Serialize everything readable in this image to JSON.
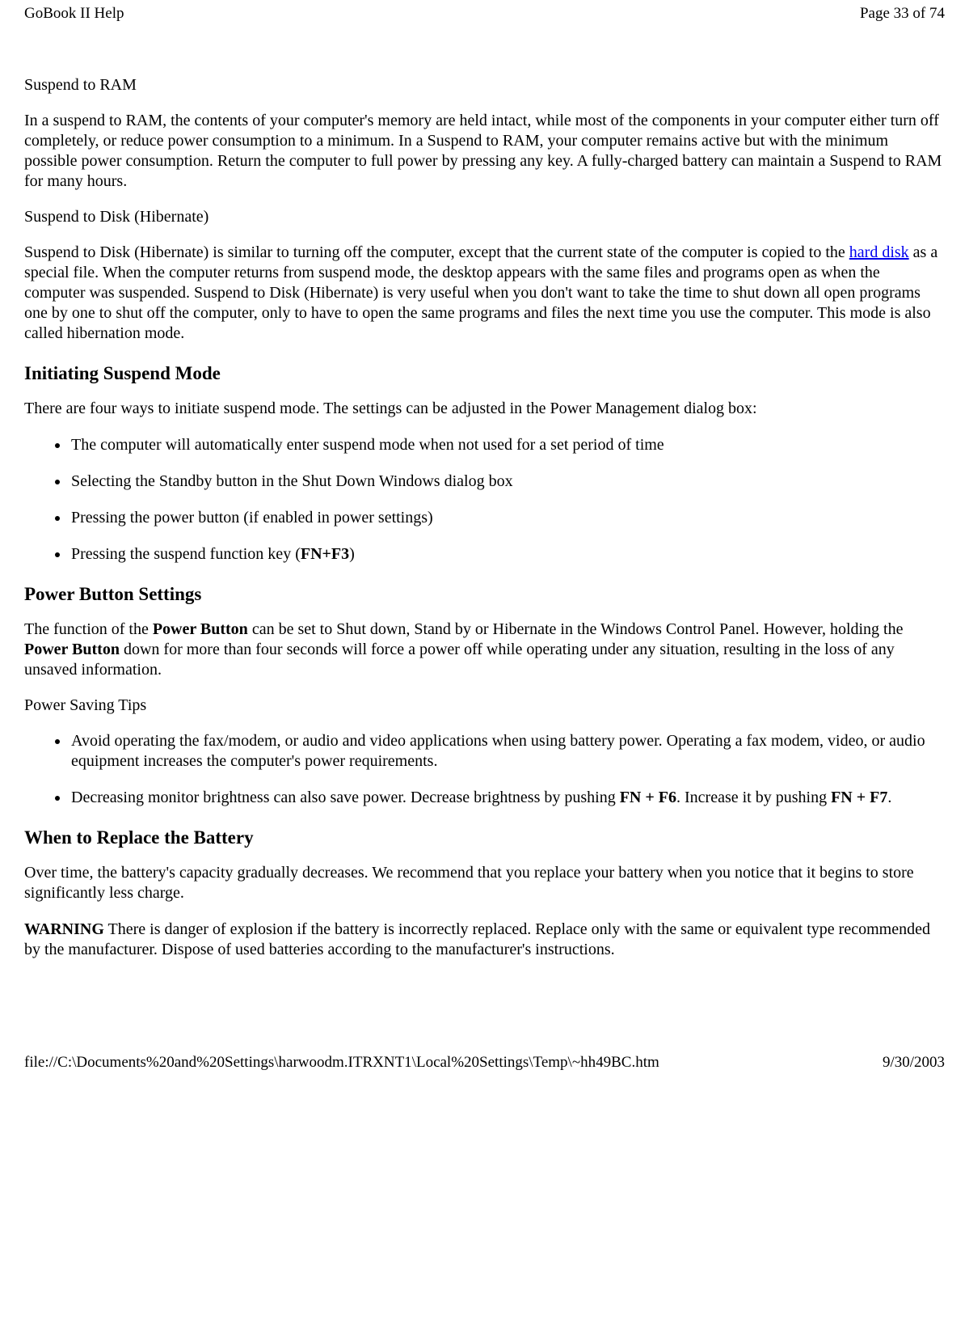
{
  "header": {
    "title": "GoBook II Help",
    "page_indicator": "Page 33 of 74"
  },
  "footer": {
    "path": "file://C:\\Documents%20and%20Settings\\harwoodm.ITRXNT1\\Local%20Settings\\Temp\\~hh49BC.htm",
    "date": "9/30/2003"
  },
  "suspend_ram": {
    "title": "Suspend to RAM",
    "para": "In a suspend to RAM, the contents of your computer's memory are held intact, while most of the components in your computer either turn off completely, or reduce power consumption to a minimum. In a Suspend to RAM, your computer remains active but with the minimum possible power consumption. Return the computer to full power by pressing any key. A fully-charged battery can maintain a Suspend to RAM for many hours."
  },
  "suspend_disk": {
    "title": "Suspend to Disk (Hibernate)",
    "para_pre": "Suspend to Disk (Hibernate) is similar to turning off the computer, except that the current state of the computer is copied to the ",
    "link_text": "hard disk",
    "para_post": " as a special file. When the computer returns from suspend mode, the desktop appears with the same files and programs open as when the computer was suspended. Suspend to Disk (Hibernate) is very useful when you don't want to take the time to shut down all open programs one by one to shut off the computer, only to have to open the same programs and files the next time you use the computer. This mode is also called hibernation mode."
  },
  "initiating": {
    "heading": "Initiating Suspend Mode",
    "intro": "There are four ways to initiate suspend mode. The settings can be adjusted in the Power Management dialog box:",
    "items": {
      "i1": "The computer will automatically enter suspend mode when not used for a set period of time",
      "i2": "Selecting the Standby button in the Shut Down Windows dialog box",
      "i3": "Pressing the power button (if enabled in power settings)",
      "i4_pre": "Pressing the suspend function key (",
      "i4_bold": "FN+F3",
      "i4_post": ")"
    }
  },
  "power_button": {
    "heading": "Power Button Settings",
    "para_pre": "The function of the ",
    "bold1": "Power Button",
    "para_mid": " can be set to Shut down, Stand by or Hibernate in the Windows Control Panel.  However, holding the ",
    "bold2": "Power Button",
    "para_post": " down for more than four seconds will force a power off while operating under any situation, resulting in the loss of any unsaved information."
  },
  "tips": {
    "title": "Power Saving Tips",
    "items": {
      "t1": "Avoid operating the fax/modem, or audio and video applications when using battery power. Operating a fax modem, video, or audio equipment increases the computer's power requirements.",
      "t2_pre": "Decreasing monitor brightness can also save power. Decrease brightness by pushing ",
      "t2_b1": "FN + F6",
      "t2_mid": ". Increase it by pushing ",
      "t2_b2": "FN + F7",
      "t2_post": "."
    }
  },
  "battery": {
    "heading": "When to Replace the Battery",
    "para": "Over time, the battery's capacity gradually decreases. We recommend that you replace your battery when you notice that it begins to store significantly less charge.",
    "warn_label": "WARNING",
    "warn_text": "  There is danger of explosion if the battery is incorrectly replaced.  Replace only with the same or equivalent type recommended by the manufacturer.  Dispose of used batteries according to the manufacturer's instructions."
  }
}
